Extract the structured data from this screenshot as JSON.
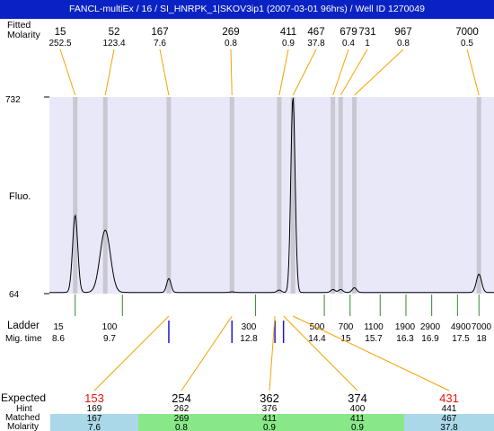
{
  "window": {
    "title": "FANCL-multiEx / 16 / SI_HNRPK_1|SKOV3ip1 (2007-03-01 96hrs) / Well ID 1270049"
  },
  "colors": {
    "title_bar": "#0a22c4",
    "plot_bg": "#e9e8f8",
    "band": "#c9c8d2",
    "peak_line": "#f5a300",
    "ladder_tick": "#2e8b2e",
    "matched_tick": "#1a1ad0",
    "expected_red": "#ee1111",
    "row_blue": "#aad8e8",
    "row_green": "#88e888"
  },
  "chart_data": {
    "type": "line",
    "ylabel": "Fluo.",
    "ylim": [
      64,
      732
    ],
    "y_ticks": [
      "732",
      "64"
    ],
    "top_header": {
      "row1_label": "Fitted",
      "row2_label": "Molarity",
      "peaks": [
        {
          "size": "15",
          "molarity": "252.5",
          "time": 8.6
        },
        {
          "size": "52",
          "molarity": "123.4",
          "time": 9.3
        },
        {
          "size": "167",
          "molarity": "7.6",
          "time": 10.78
        },
        {
          "size": "269",
          "molarity": "0.8",
          "time": 12.25
        },
        {
          "size": "411",
          "molarity": "0.9",
          "time": 13.35
        },
        {
          "size": "467",
          "molarity": "37.8",
          "time": 13.67
        },
        {
          "size": "679",
          "molarity": "0.4",
          "time": 14.6
        },
        {
          "size": "731",
          "molarity": "1",
          "time": 14.78
        },
        {
          "size": "967",
          "molarity": "0.8",
          "time": 15.1
        },
        {
          "size": "7000",
          "molarity": "0.5",
          "time": 18.0
        }
      ]
    },
    "bands_time": [
      8.6,
      9.3,
      10.78,
      12.25,
      13.35,
      13.67,
      14.6,
      14.78,
      15.1,
      18.0
    ],
    "trace": {
      "baseline": 68,
      "peaks": [
        {
          "time": 8.6,
          "height": 330,
          "width": 0.06
        },
        {
          "time": 9.3,
          "height": 280,
          "width": 0.12
        },
        {
          "time": 10.78,
          "height": 115,
          "width": 0.05
        },
        {
          "time": 12.25,
          "height": 70,
          "width": 0.05
        },
        {
          "time": 13.35,
          "height": 76,
          "width": 0.05
        },
        {
          "time": 13.67,
          "height": 732,
          "width": 0.05
        },
        {
          "time": 14.6,
          "height": 78,
          "width": 0.05
        },
        {
          "time": 14.78,
          "height": 78,
          "width": 0.05
        },
        {
          "time": 15.1,
          "height": 84,
          "width": 0.05
        },
        {
          "time": 18.0,
          "height": 130,
          "width": 0.06
        }
      ]
    },
    "ladder": {
      "label": "Ladder",
      "sublabel": "Mig. time",
      "points": [
        {
          "size": "15",
          "time_label": "8.6",
          "time": 8.6
        },
        {
          "size": "100",
          "time_label": "9.7",
          "time": 9.7
        },
        {
          "size": "300",
          "time_label": "12.8",
          "time": 12.8
        },
        {
          "size": "500",
          "time_label": "14.4",
          "time": 14.4
        },
        {
          "size": "700",
          "time_label": "15",
          "time": 15.0
        },
        {
          "size": "1100",
          "time_label": "15.7",
          "time": 15.7
        },
        {
          "size": "1900",
          "time_label": "16.3",
          "time": 16.3
        },
        {
          "size": "2900",
          "time_label": "16.9",
          "time": 16.9
        },
        {
          "size": "4900",
          "time_label": "17.5",
          "time": 17.5
        },
        {
          "size": "7000",
          "time_label": "18",
          "time": 18.0
        }
      ]
    },
    "matched_ticks_time": [
      10.78,
      12.25,
      13.25,
      13.45
    ],
    "expected_table": {
      "labels": {
        "expected": "Expected",
        "hint": "Hint",
        "matched": "Matched",
        "molarity": "Molarity"
      },
      "columns": [
        {
          "expected": "153",
          "hint": "169",
          "matched": "167",
          "molarity": "7.6",
          "red": true,
          "row_color": "blue",
          "match_time": 10.78
        },
        {
          "expected": "254",
          "hint": "262",
          "matched": "269",
          "molarity": "0.8",
          "red": false,
          "row_color": "green",
          "match_time": 12.25
        },
        {
          "expected": "362",
          "hint": "376",
          "matched": "411",
          "molarity": "0.9",
          "red": false,
          "row_color": "green",
          "match_time": 13.25
        },
        {
          "expected": "374",
          "hint": "400",
          "matched": "411",
          "molarity": "0.9",
          "red": false,
          "row_color": "green",
          "match_time": 13.45
        },
        {
          "expected": "431",
          "hint": "441",
          "matched": "467",
          "molarity": "37.8",
          "red": true,
          "row_color": "blue",
          "match_time": 13.67
        }
      ]
    }
  }
}
